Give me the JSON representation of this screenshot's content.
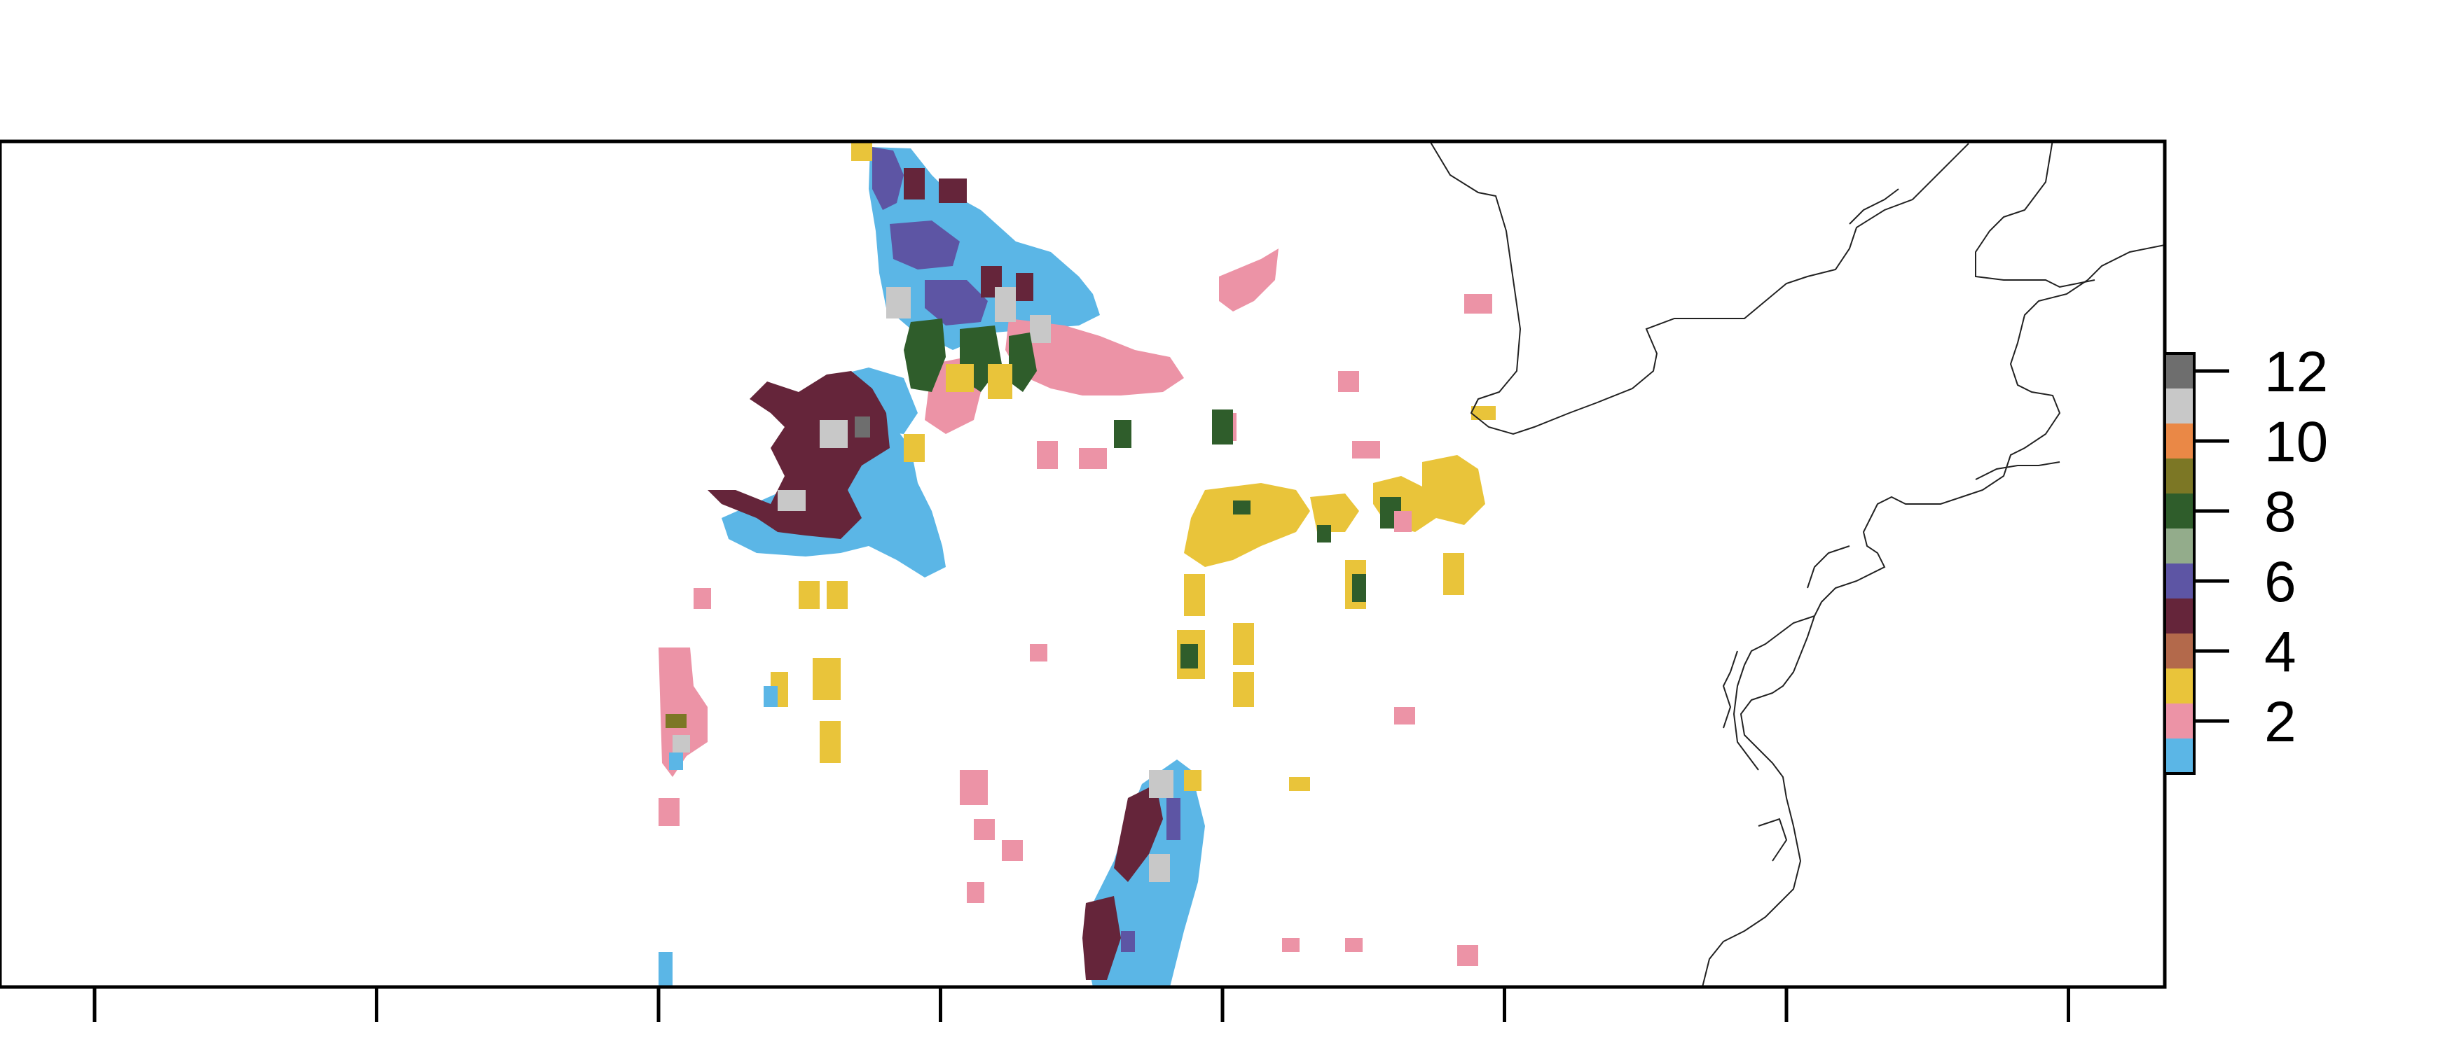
{
  "legend": {
    "colors": [
      "#5bb6e6",
      "#ec93a6",
      "#e9c43a",
      "#b3694b",
      "#65253a",
      "#5d55a4",
      "#93ac8b",
      "#2f5d2b",
      "#7c7725",
      "#ea8846",
      "#c8c8c8",
      "#6e6e6e"
    ],
    "class_values": [
      1,
      2,
      3,
      4,
      5,
      6,
      7,
      8,
      9,
      10,
      11,
      12
    ],
    "tick_labels": [
      "2",
      "4",
      "6",
      "8",
      "10",
      "12"
    ],
    "tick_values": [
      2,
      4,
      6,
      8,
      10,
      12
    ]
  },
  "map": {
    "frame_color": "#000000",
    "coastline_color": "#222222",
    "x_tick_count": 8
  }
}
